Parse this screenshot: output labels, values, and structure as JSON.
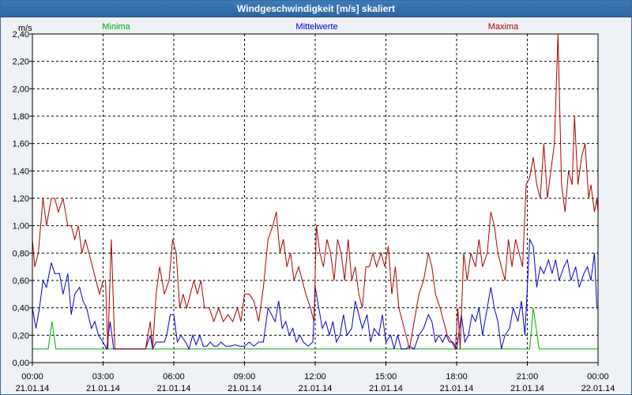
{
  "window": {
    "title": "Windgeschwindigkeit [m/s] skaliert"
  },
  "chart_data": {
    "type": "line",
    "title": "Windgeschwindigkeit [m/s] skaliert",
    "ylabel": "m/s",
    "ylim": [
      0,
      2.4
    ],
    "y_ticks": [
      "0,00",
      "0,20",
      "0,40",
      "0,60",
      "0,80",
      "1,00",
      "1,20",
      "1,40",
      "1,60",
      "1,80",
      "2,00",
      "2,20",
      "2,40"
    ],
    "xlim_hours": [
      0,
      24
    ],
    "x_ticks": [
      {
        "time": "00:00",
        "date": "21.01.14"
      },
      {
        "time": "03:00",
        "date": "21.01.14"
      },
      {
        "time": "06:00",
        "date": "21.01.14"
      },
      {
        "time": "09:00",
        "date": "21.01.14"
      },
      {
        "time": "12:00",
        "date": "21.01.14"
      },
      {
        "time": "15:00",
        "date": "21.01.14"
      },
      {
        "time": "18:00",
        "date": "21.01.14"
      },
      {
        "time": "21:00",
        "date": "21.01.14"
      },
      {
        "time": "00:00",
        "date": "22.01.14"
      }
    ],
    "grid": true,
    "legend_placement": "top",
    "series": [
      {
        "name": "Minima",
        "color": "#00aa00",
        "points": [
          [
            0,
            0.1
          ],
          [
            0.67,
            0.1
          ],
          [
            0.83,
            0.3
          ],
          [
            1.0,
            0.1
          ],
          [
            21.1,
            0.1
          ],
          [
            21.25,
            0.4
          ],
          [
            21.5,
            0.1
          ],
          [
            24,
            0.1
          ]
        ]
      },
      {
        "name": "Mittelwerte",
        "color": "#0000cc",
        "points": [
          [
            0,
            0.4
          ],
          [
            0.15,
            0.25
          ],
          [
            0.3,
            0.4
          ],
          [
            0.45,
            0.6
          ],
          [
            0.6,
            0.55
          ],
          [
            0.8,
            0.73
          ],
          [
            0.95,
            0.65
          ],
          [
            1.15,
            0.65
          ],
          [
            1.3,
            0.5
          ],
          [
            1.5,
            0.65
          ],
          [
            1.65,
            0.35
          ],
          [
            1.8,
            0.5
          ],
          [
            2.0,
            0.55
          ],
          [
            2.15,
            0.45
          ],
          [
            2.3,
            0.4
          ],
          [
            2.5,
            0.25
          ],
          [
            2.65,
            0.3
          ],
          [
            2.8,
            0.2
          ],
          [
            3.0,
            0.15
          ],
          [
            3.15,
            0.1
          ],
          [
            3.3,
            0.3
          ],
          [
            3.45,
            0.1
          ],
          [
            4.0,
            0.1
          ],
          [
            4.5,
            0.1
          ],
          [
            4.8,
            0.1
          ],
          [
            5.0,
            0.2
          ],
          [
            5.1,
            0.1
          ],
          [
            5.25,
            0.15
          ],
          [
            5.4,
            0.15
          ],
          [
            5.6,
            0.15
          ],
          [
            5.7,
            0.2
          ],
          [
            5.85,
            0.35
          ],
          [
            6.0,
            0.35
          ],
          [
            6.15,
            0.15
          ],
          [
            6.3,
            0.2
          ],
          [
            6.5,
            0.15
          ],
          [
            6.65,
            0.1
          ],
          [
            6.8,
            0.2
          ],
          [
            6.95,
            0.13
          ],
          [
            7.1,
            0.2
          ],
          [
            7.25,
            0.12
          ],
          [
            7.4,
            0.12
          ],
          [
            7.55,
            0.15
          ],
          [
            7.7,
            0.12
          ],
          [
            7.85,
            0.12
          ],
          [
            8.0,
            0.15
          ],
          [
            8.2,
            0.12
          ],
          [
            8.4,
            0.12
          ],
          [
            8.6,
            0.13
          ],
          [
            8.8,
            0.12
          ],
          [
            9.0,
            0.12
          ],
          [
            9.2,
            0.15
          ],
          [
            9.4,
            0.12
          ],
          [
            9.6,
            0.15
          ],
          [
            9.8,
            0.15
          ],
          [
            10.0,
            0.4
          ],
          [
            10.15,
            0.35
          ],
          [
            10.3,
            0.3
          ],
          [
            10.45,
            0.45
          ],
          [
            10.6,
            0.25
          ],
          [
            10.75,
            0.3
          ],
          [
            10.9,
            0.2
          ],
          [
            11.05,
            0.25
          ],
          [
            11.2,
            0.15
          ],
          [
            11.35,
            0.2
          ],
          [
            11.5,
            0.15
          ],
          [
            11.7,
            0.12
          ],
          [
            11.9,
            0.15
          ],
          [
            12.0,
            0.55
          ],
          [
            12.15,
            0.4
          ],
          [
            12.3,
            0.25
          ],
          [
            12.45,
            0.3
          ],
          [
            12.6,
            0.2
          ],
          [
            12.75,
            0.3
          ],
          [
            12.9,
            0.15
          ],
          [
            13.05,
            0.2
          ],
          [
            13.2,
            0.35
          ],
          [
            13.35,
            0.2
          ],
          [
            13.55,
            0.25
          ],
          [
            13.7,
            0.45
          ],
          [
            13.85,
            0.35
          ],
          [
            14.0,
            0.25
          ],
          [
            14.2,
            0.35
          ],
          [
            14.35,
            0.15
          ],
          [
            14.5,
            0.25
          ],
          [
            14.7,
            0.2
          ],
          [
            14.85,
            0.35
          ],
          [
            15.0,
            0.15
          ],
          [
            15.2,
            0.2
          ],
          [
            15.35,
            0.1
          ],
          [
            15.5,
            0.2
          ],
          [
            15.65,
            0.1
          ],
          [
            15.85,
            0.1
          ],
          [
            16.0,
            0.12
          ],
          [
            16.2,
            0.1
          ],
          [
            16.4,
            0.2
          ],
          [
            16.6,
            0.25
          ],
          [
            16.8,
            0.35
          ],
          [
            16.95,
            0.3
          ],
          [
            17.1,
            0.15
          ],
          [
            17.25,
            0.2
          ],
          [
            17.4,
            0.15
          ],
          [
            17.55,
            0.2
          ],
          [
            17.7,
            0.15
          ],
          [
            17.85,
            0.15
          ],
          [
            18.0,
            0.1
          ],
          [
            18.2,
            0.35
          ],
          [
            18.35,
            0.15
          ],
          [
            18.5,
            0.2
          ],
          [
            18.65,
            0.35
          ],
          [
            18.8,
            0.3
          ],
          [
            18.95,
            0.4
          ],
          [
            19.1,
            0.2
          ],
          [
            19.25,
            0.35
          ],
          [
            19.45,
            0.55
          ],
          [
            19.6,
            0.4
          ],
          [
            19.75,
            0.3
          ],
          [
            19.9,
            0.1
          ],
          [
            20.05,
            0.2
          ],
          [
            20.25,
            0.25
          ],
          [
            20.4,
            0.4
          ],
          [
            20.6,
            0.3
          ],
          [
            20.75,
            0.45
          ],
          [
            20.9,
            0.2
          ],
          [
            21.0,
            0.55
          ],
          [
            21.1,
            0.9
          ],
          [
            21.25,
            0.85
          ],
          [
            21.4,
            0.55
          ],
          [
            21.55,
            0.7
          ],
          [
            21.7,
            0.65
          ],
          [
            21.9,
            0.75
          ],
          [
            22.05,
            0.65
          ],
          [
            22.2,
            0.75
          ],
          [
            22.35,
            0.6
          ],
          [
            22.55,
            0.7
          ],
          [
            22.7,
            0.75
          ],
          [
            22.85,
            0.6
          ],
          [
            23.05,
            0.7
          ],
          [
            23.2,
            0.55
          ],
          [
            23.4,
            0.65
          ],
          [
            23.55,
            0.7
          ],
          [
            23.7,
            0.6
          ],
          [
            23.85,
            0.8
          ],
          [
            23.95,
            0.4
          ],
          [
            24.0,
            0.4
          ]
        ]
      },
      {
        "name": "Maxima",
        "color": "#aa0000",
        "points": [
          [
            0,
            0.9
          ],
          [
            0.1,
            0.7
          ],
          [
            0.25,
            0.8
          ],
          [
            0.45,
            1.2
          ],
          [
            0.6,
            1.0
          ],
          [
            0.8,
            1.2
          ],
          [
            0.95,
            1.2
          ],
          [
            1.1,
            1.1
          ],
          [
            1.3,
            1.2
          ],
          [
            1.5,
            1.0
          ],
          [
            1.65,
            1.0
          ],
          [
            1.8,
            0.9
          ],
          [
            1.95,
            1.0
          ],
          [
            2.1,
            0.8
          ],
          [
            2.25,
            0.9
          ],
          [
            2.4,
            0.8
          ],
          [
            2.55,
            0.7
          ],
          [
            2.7,
            0.6
          ],
          [
            2.85,
            0.5
          ],
          [
            3.0,
            0.6
          ],
          [
            3.1,
            0.6
          ],
          [
            3.2,
            0.1
          ],
          [
            3.35,
            0.9
          ],
          [
            3.5,
            0.1
          ],
          [
            4.0,
            0.1
          ],
          [
            4.5,
            0.1
          ],
          [
            4.8,
            0.1
          ],
          [
            5.0,
            0.3
          ],
          [
            5.1,
            0.1
          ],
          [
            5.25,
            0.5
          ],
          [
            5.4,
            0.7
          ],
          [
            5.6,
            0.5
          ],
          [
            5.8,
            0.6
          ],
          [
            5.95,
            0.9
          ],
          [
            6.1,
            0.8
          ],
          [
            6.25,
            0.4
          ],
          [
            6.4,
            0.5
          ],
          [
            6.55,
            0.4
          ],
          [
            6.7,
            0.5
          ],
          [
            6.85,
            0.6
          ],
          [
            7.0,
            0.5
          ],
          [
            7.15,
            0.6
          ],
          [
            7.3,
            0.4
          ],
          [
            7.5,
            0.4
          ],
          [
            7.7,
            0.3
          ],
          [
            7.9,
            0.4
          ],
          [
            8.1,
            0.3
          ],
          [
            8.3,
            0.35
          ],
          [
            8.5,
            0.3
          ],
          [
            8.7,
            0.4
          ],
          [
            8.85,
            0.3
          ],
          [
            9.0,
            0.5
          ],
          [
            9.2,
            0.5
          ],
          [
            9.4,
            0.45
          ],
          [
            9.6,
            0.3
          ],
          [
            9.8,
            0.55
          ],
          [
            10.0,
            0.9
          ],
          [
            10.2,
            1.0
          ],
          [
            10.35,
            1.1
          ],
          [
            10.5,
            0.8
          ],
          [
            10.65,
            0.9
          ],
          [
            10.8,
            0.7
          ],
          [
            10.95,
            0.8
          ],
          [
            11.1,
            0.6
          ],
          [
            11.3,
            0.7
          ],
          [
            11.45,
            0.6
          ],
          [
            11.6,
            0.5
          ],
          [
            11.8,
            0.4
          ],
          [
            11.95,
            0.3
          ],
          [
            12.05,
            1.0
          ],
          [
            12.2,
            0.8
          ],
          [
            12.35,
            0.7
          ],
          [
            12.5,
            0.9
          ],
          [
            12.65,
            0.8
          ],
          [
            12.8,
            0.6
          ],
          [
            12.95,
            0.9
          ],
          [
            13.1,
            0.8
          ],
          [
            13.25,
            0.6
          ],
          [
            13.4,
            0.9
          ],
          [
            13.55,
            0.6
          ],
          [
            13.7,
            0.7
          ],
          [
            13.85,
            0.5
          ],
          [
            14.0,
            0.4
          ],
          [
            14.15,
            0.7
          ],
          [
            14.3,
            0.7
          ],
          [
            14.45,
            0.8
          ],
          [
            14.6,
            0.7
          ],
          [
            14.8,
            0.8
          ],
          [
            14.95,
            0.7
          ],
          [
            15.1,
            0.85
          ],
          [
            15.25,
            0.5
          ],
          [
            15.4,
            0.7
          ],
          [
            15.55,
            0.4
          ],
          [
            15.7,
            0.3
          ],
          [
            15.85,
            0.2
          ],
          [
            16.0,
            0.1
          ],
          [
            16.2,
            0.3
          ],
          [
            16.4,
            0.5
          ],
          [
            16.6,
            0.6
          ],
          [
            16.8,
            0.8
          ],
          [
            16.95,
            0.7
          ],
          [
            17.1,
            0.5
          ],
          [
            17.3,
            0.4
          ],
          [
            17.45,
            0.3
          ],
          [
            17.6,
            0.2
          ],
          [
            17.8,
            0.15
          ],
          [
            17.95,
            0.1
          ],
          [
            18.05,
            0.4
          ],
          [
            18.15,
            0.1
          ],
          [
            18.3,
            0.8
          ],
          [
            18.45,
            0.6
          ],
          [
            18.6,
            0.8
          ],
          [
            18.8,
            0.7
          ],
          [
            18.95,
            0.9
          ],
          [
            19.1,
            0.7
          ],
          [
            19.3,
            0.8
          ],
          [
            19.45,
            1.1
          ],
          [
            19.6,
            1.0
          ],
          [
            19.75,
            0.8
          ],
          [
            19.9,
            0.7
          ],
          [
            20.05,
            0.6
          ],
          [
            20.2,
            0.9
          ],
          [
            20.35,
            0.7
          ],
          [
            20.5,
            0.9
          ],
          [
            20.65,
            0.8
          ],
          [
            20.8,
            0.7
          ],
          [
            20.95,
            1.3
          ],
          [
            21.1,
            1.35
          ],
          [
            21.25,
            1.5
          ],
          [
            21.4,
            1.3
          ],
          [
            21.55,
            1.2
          ],
          [
            21.7,
            1.6
          ],
          [
            21.85,
            1.2
          ],
          [
            22.0,
            1.4
          ],
          [
            22.15,
            1.6
          ],
          [
            22.3,
            2.4
          ],
          [
            22.45,
            1.3
          ],
          [
            22.6,
            1.1
          ],
          [
            22.75,
            1.4
          ],
          [
            22.9,
            1.3
          ],
          [
            23.0,
            1.8
          ],
          [
            23.15,
            1.3
          ],
          [
            23.3,
            1.5
          ],
          [
            23.45,
            1.6
          ],
          [
            23.6,
            1.2
          ],
          [
            23.7,
            1.3
          ],
          [
            23.85,
            1.1
          ],
          [
            23.95,
            1.2
          ],
          [
            24.0,
            1.1
          ]
        ]
      }
    ]
  }
}
